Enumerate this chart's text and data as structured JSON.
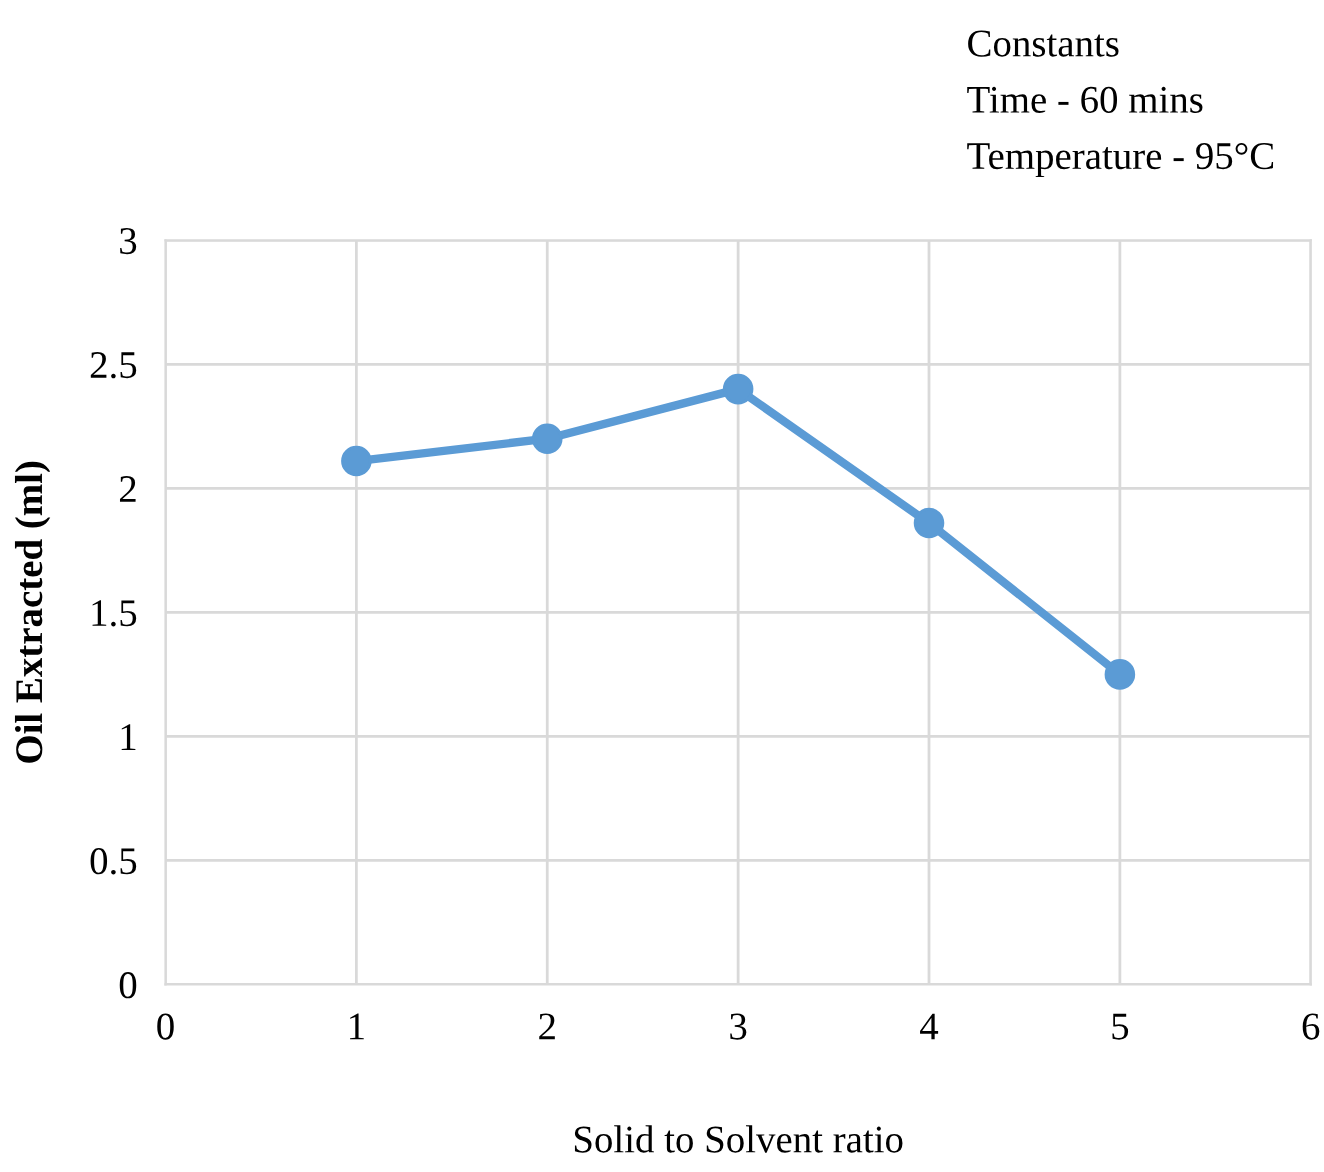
{
  "chart_data": {
    "type": "line",
    "xlabel": "Solid to Solvent ratio",
    "ylabel": "Oil Extracted (ml)",
    "annotations": [
      "Constants",
      "Time - 60 mins",
      "Temperature - 95°C"
    ],
    "x": [
      1,
      2,
      3,
      4,
      5
    ],
    "series": [
      {
        "color": "#5b9bd5",
        "values": [
          2.11,
          2.2,
          2.4,
          1.86,
          1.25
        ]
      }
    ],
    "xlim": [
      0,
      6
    ],
    "xticks": [
      0,
      1,
      2,
      3,
      4,
      5,
      6
    ],
    "ylim": [
      0,
      3
    ],
    "yticks": [
      0,
      0.5,
      1,
      1.5,
      2,
      2.5,
      3
    ],
    "grid": true,
    "marker": "circle",
    "line_style": "solid"
  }
}
